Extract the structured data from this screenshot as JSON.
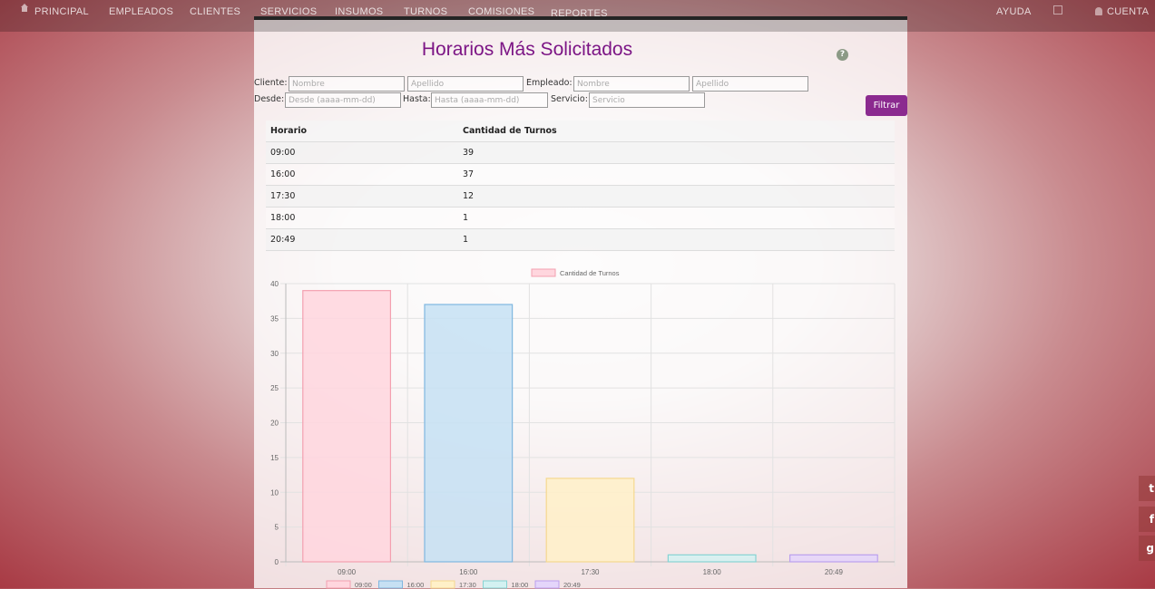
{
  "nav": {
    "items": [
      "PRINCIPAL",
      "EMPLEADOS",
      "CLIENTES",
      "SERVICIOS",
      "INSUMOS",
      "TURNOS",
      "COMISIONES",
      "REPORTES"
    ],
    "help": "AYUDA",
    "account": "CUENTA"
  },
  "page": {
    "title": "Horarios Más Solicitados"
  },
  "filters": {
    "cliente_label": "Cliente:",
    "cliente_nombre_placeholder": "Nombre",
    "cliente_apellido_placeholder": "Apellido",
    "empleado_label": "Empleado:",
    "empleado_nombre_placeholder": "Nombre",
    "empleado_apellido_placeholder": "Apellido",
    "desde_label": "Desde:",
    "desde_placeholder": "Desde (aaaa-mm-dd)",
    "hasta_label": "Hasta:",
    "hasta_placeholder": "Hasta (aaaa-mm-dd)",
    "servicio_label": "Servicio:",
    "servicio_placeholder": "Servicio",
    "button": "Filtrar"
  },
  "table": {
    "headers": [
      "Horario",
      "Cantidad de Turnos"
    ],
    "rows": [
      [
        "09:00",
        "39"
      ],
      [
        "16:00",
        "37"
      ],
      [
        "17:30",
        "12"
      ],
      [
        "18:00",
        "1"
      ],
      [
        "20:49",
        "1"
      ]
    ]
  },
  "chart_data": {
    "type": "bar",
    "categories": [
      "09:00",
      "16:00",
      "17:30",
      "18:00",
      "20:49"
    ],
    "values": [
      39,
      37,
      12,
      1,
      1
    ],
    "series": [
      {
        "name": "Cantidad de Turnos",
        "values": [
          39,
          37,
          12,
          1,
          1
        ]
      }
    ],
    "ylim": [
      0,
      40
    ],
    "yticks": [
      0,
      5,
      10,
      15,
      20,
      25,
      30,
      35,
      40
    ],
    "legend_top": "Cantidad de Turnos",
    "legend_bottom": [
      "09:00",
      "16:00",
      "17:30",
      "18:00",
      "20:49"
    ],
    "legend_position": "top and bottom",
    "grid": true,
    "bar_fill": [
      "#ffd6de",
      "#c6e0f3",
      "#fff0c8",
      "#d3f1f1",
      "#e4d5fa"
    ],
    "bar_stroke": [
      "#f3a0b0",
      "#7fb7e0",
      "#f5d88f",
      "#86d3d3",
      "#bba0ee"
    ]
  },
  "social": [
    "t",
    "f",
    "g"
  ],
  "colors": {
    "accent": "#8b2a8f",
    "title": "#7c1585"
  }
}
